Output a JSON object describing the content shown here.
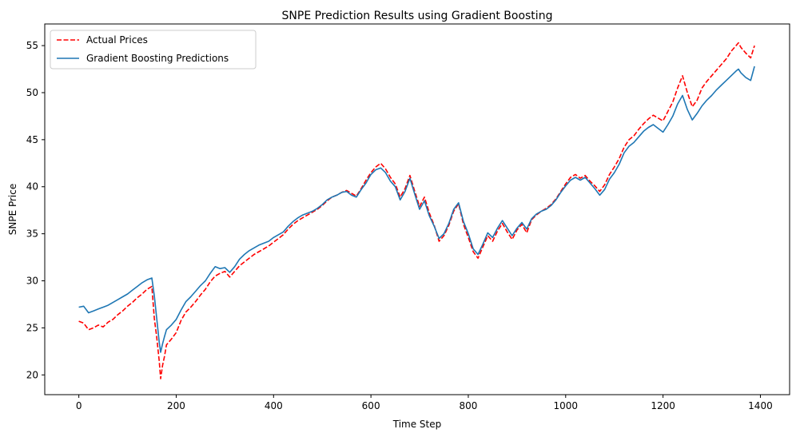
{
  "chart_data": {
    "type": "line",
    "title": "SNPE Prediction Results using Gradient Boosting",
    "xlabel": "Time Step",
    "ylabel": "SNPE Price",
    "xlim": [
      -70,
      1460
    ],
    "ylim": [
      17.9,
      57.3
    ],
    "xticks": [
      0,
      200,
      400,
      600,
      800,
      1000,
      1200,
      1400
    ],
    "yticks": [
      20,
      25,
      30,
      35,
      40,
      45,
      50,
      55
    ],
    "grid": false,
    "legend": "top-left",
    "series": [
      {
        "name": "Actual Prices",
        "color": "#ff0000",
        "style": "dashed",
        "x": [
          0,
          10,
          20,
          30,
          40,
          50,
          60,
          70,
          80,
          90,
          100,
          110,
          120,
          130,
          140,
          150,
          155,
          160,
          165,
          168,
          172,
          176,
          180,
          190,
          200,
          210,
          220,
          230,
          240,
          250,
          260,
          270,
          280,
          290,
          300,
          310,
          320,
          330,
          340,
          350,
          360,
          370,
          380,
          390,
          400,
          410,
          420,
          430,
          440,
          450,
          460,
          470,
          480,
          490,
          500,
          510,
          520,
          530,
          540,
          550,
          560,
          570,
          580,
          590,
          600,
          610,
          620,
          630,
          640,
          650,
          660,
          670,
          680,
          690,
          700,
          710,
          720,
          730,
          740,
          750,
          760,
          770,
          780,
          790,
          800,
          810,
          820,
          830,
          840,
          850,
          860,
          870,
          880,
          890,
          900,
          910,
          920,
          930,
          940,
          950,
          960,
          970,
          980,
          990,
          1000,
          1010,
          1020,
          1030,
          1040,
          1050,
          1060,
          1070,
          1080,
          1090,
          1100,
          1110,
          1120,
          1130,
          1140,
          1150,
          1160,
          1170,
          1180,
          1190,
          1200,
          1210,
          1220,
          1230,
          1240,
          1250,
          1260,
          1270,
          1280,
          1290,
          1300,
          1310,
          1320,
          1330,
          1340,
          1350,
          1355,
          1360,
          1370,
          1380,
          1388
        ],
        "y": [
          25.7,
          25.5,
          24.8,
          25.0,
          25.3,
          25.1,
          25.6,
          25.9,
          26.4,
          26.8,
          27.3,
          27.7,
          28.2,
          28.6,
          29.1,
          29.4,
          26.0,
          24.0,
          21.5,
          19.6,
          21.0,
          22.0,
          23.2,
          23.8,
          24.5,
          25.8,
          26.7,
          27.2,
          27.8,
          28.5,
          29.1,
          29.9,
          30.5,
          30.8,
          31.0,
          30.4,
          31.0,
          31.6,
          32.0,
          32.4,
          32.8,
          33.1,
          33.4,
          33.7,
          34.1,
          34.5,
          34.9,
          35.5,
          36.0,
          36.4,
          36.7,
          37.0,
          37.3,
          37.6,
          38.0,
          38.5,
          38.9,
          39.1,
          39.4,
          39.6,
          39.3,
          39.0,
          39.8,
          40.7,
          41.5,
          42.1,
          42.5,
          41.9,
          41.0,
          40.3,
          38.9,
          39.8,
          41.2,
          39.5,
          37.9,
          38.9,
          37.2,
          35.9,
          34.2,
          34.8,
          35.9,
          37.4,
          38.2,
          36.0,
          34.6,
          33.1,
          32.4,
          33.6,
          34.8,
          34.2,
          35.3,
          36.1,
          35.2,
          34.4,
          35.4,
          36.0,
          35.1,
          36.5,
          37.0,
          37.4,
          37.7,
          38.1,
          38.7,
          39.5,
          40.3,
          41.0,
          41.3,
          40.9,
          41.2,
          40.6,
          40.1,
          39.5,
          40.2,
          41.3,
          42.1,
          43.0,
          44.2,
          45.0,
          45.4,
          46.1,
          46.7,
          47.2,
          47.6,
          47.3,
          47.0,
          48.0,
          49.0,
          50.5,
          51.8,
          50.0,
          48.5,
          49.2,
          50.5,
          51.2,
          51.8,
          52.4,
          53.0,
          53.6,
          54.4,
          55.0,
          55.3,
          54.8,
          54.2,
          53.7,
          55.0
        ]
      },
      {
        "name": "Gradient Boosting Predictions",
        "color": "#1f77b4",
        "style": "solid",
        "x": [
          0,
          10,
          20,
          30,
          40,
          50,
          60,
          70,
          80,
          90,
          100,
          110,
          120,
          130,
          140,
          150,
          155,
          160,
          165,
          168,
          172,
          176,
          180,
          190,
          200,
          210,
          220,
          230,
          240,
          250,
          260,
          270,
          280,
          290,
          300,
          310,
          320,
          330,
          340,
          350,
          360,
          370,
          380,
          390,
          400,
          410,
          420,
          430,
          440,
          450,
          460,
          470,
          480,
          490,
          500,
          510,
          520,
          530,
          540,
          550,
          560,
          570,
          580,
          590,
          600,
          610,
          620,
          630,
          640,
          650,
          660,
          670,
          680,
          690,
          700,
          710,
          720,
          730,
          740,
          750,
          760,
          770,
          780,
          790,
          800,
          810,
          820,
          830,
          840,
          850,
          860,
          870,
          880,
          890,
          900,
          910,
          920,
          930,
          940,
          950,
          960,
          970,
          980,
          990,
          1000,
          1010,
          1020,
          1030,
          1040,
          1050,
          1060,
          1070,
          1080,
          1090,
          1100,
          1110,
          1120,
          1130,
          1140,
          1150,
          1160,
          1170,
          1180,
          1190,
          1200,
          1210,
          1220,
          1230,
          1240,
          1250,
          1260,
          1270,
          1280,
          1290,
          1300,
          1310,
          1320,
          1330,
          1340,
          1350,
          1355,
          1360,
          1370,
          1380,
          1388
        ],
        "y": [
          27.2,
          27.3,
          26.6,
          26.8,
          27.0,
          27.2,
          27.4,
          27.7,
          28.0,
          28.3,
          28.6,
          29.0,
          29.4,
          29.8,
          30.1,
          30.3,
          28.4,
          26.0,
          23.5,
          22.4,
          23.3,
          24.1,
          24.8,
          25.3,
          25.9,
          26.9,
          27.8,
          28.3,
          28.9,
          29.5,
          30.0,
          30.8,
          31.5,
          31.3,
          31.4,
          30.9,
          31.5,
          32.3,
          32.8,
          33.2,
          33.5,
          33.8,
          34.0,
          34.2,
          34.6,
          34.9,
          35.2,
          35.8,
          36.3,
          36.7,
          37.0,
          37.2,
          37.4,
          37.7,
          38.1,
          38.6,
          38.9,
          39.1,
          39.4,
          39.5,
          39.1,
          38.9,
          39.7,
          40.4,
          41.3,
          41.8,
          42.0,
          41.5,
          40.6,
          40.0,
          38.6,
          39.5,
          40.9,
          39.2,
          37.6,
          38.5,
          36.9,
          35.8,
          34.5,
          35.0,
          36.1,
          37.6,
          38.3,
          36.3,
          35.0,
          33.4,
          32.8,
          33.9,
          35.1,
          34.6,
          35.6,
          36.4,
          35.6,
          34.8,
          35.6,
          36.2,
          35.5,
          36.6,
          37.1,
          37.4,
          37.6,
          38.0,
          38.6,
          39.4,
          40.1,
          40.7,
          41.0,
          40.7,
          41.0,
          40.4,
          39.8,
          39.1,
          39.7,
          40.8,
          41.5,
          42.4,
          43.6,
          44.3,
          44.7,
          45.3,
          45.9,
          46.3,
          46.6,
          46.2,
          45.8,
          46.6,
          47.5,
          48.8,
          49.7,
          48.2,
          47.1,
          47.8,
          48.6,
          49.2,
          49.7,
          50.3,
          50.8,
          51.3,
          51.8,
          52.3,
          52.5,
          52.1,
          51.6,
          51.3,
          52.8
        ]
      }
    ]
  }
}
